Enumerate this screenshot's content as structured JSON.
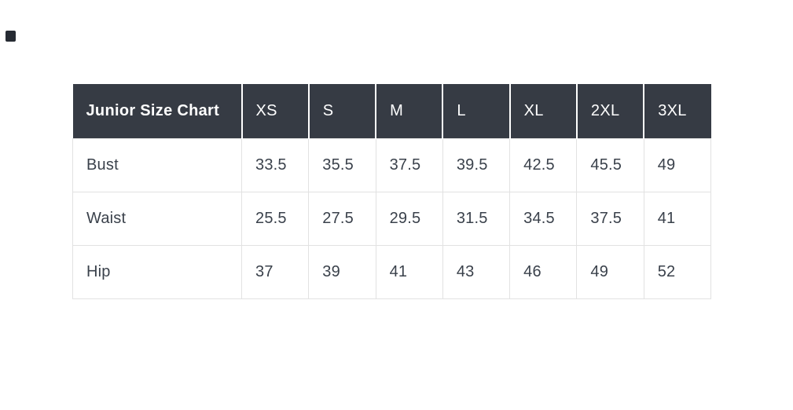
{
  "page": {
    "background": "#ffffff"
  },
  "artifact": {
    "description": "small dark rounded square mark at top-left of page",
    "color": "#262b33"
  },
  "colors": {
    "header_bg": "#363b44",
    "header_text": "#ffffff",
    "body_text": "#3a414b",
    "border": "#e2e2e2"
  },
  "chart_data": {
    "type": "table",
    "title": "Junior Size Chart",
    "columns": [
      "Junior Size Chart",
      "XS",
      "S",
      "M",
      "L",
      "XL",
      "2XL",
      "3XL"
    ],
    "rows": [
      {
        "label": "Bust",
        "values": [
          33.5,
          35.5,
          37.5,
          39.5,
          42.5,
          45.5,
          49
        ]
      },
      {
        "label": "Waist",
        "values": [
          25.5,
          27.5,
          29.5,
          31.5,
          34.5,
          37.5,
          41
        ]
      },
      {
        "label": "Hip",
        "values": [
          37,
          39,
          41,
          43,
          46,
          49,
          52
        ]
      }
    ],
    "layout": {
      "header_row": "dark background, white text, left-aligned",
      "body": "white cells, light gray 1px grid borders, left-aligned values",
      "grid": true
    }
  }
}
